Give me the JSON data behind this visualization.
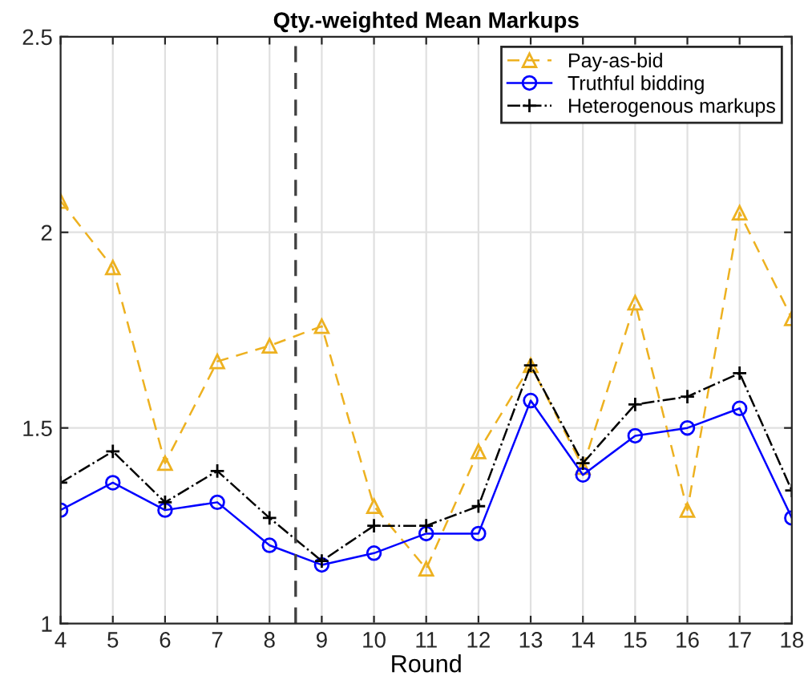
{
  "chart_data": {
    "type": "line",
    "title": "Qty.-weighted Mean Markups",
    "xlabel": "Round",
    "x": [
      4,
      5,
      6,
      7,
      8,
      9,
      10,
      11,
      12,
      13,
      14,
      15,
      16,
      17,
      18
    ],
    "series": [
      {
        "name": "Pay-as-bid",
        "color": "#edb120",
        "marker": "triangle",
        "line_style": "dashed",
        "values": [
          2.08,
          1.91,
          1.41,
          1.67,
          1.71,
          1.76,
          1.3,
          1.14,
          1.44,
          1.66,
          1.4,
          1.82,
          1.29,
          2.05,
          1.78
        ]
      },
      {
        "name": "Truthful bidding",
        "color": "#0000ff",
        "marker": "circle",
        "line_style": "solid",
        "values": [
          1.29,
          1.36,
          1.29,
          1.31,
          1.2,
          1.15,
          1.18,
          1.23,
          1.23,
          1.57,
          1.38,
          1.48,
          1.5,
          1.55,
          1.27
        ]
      },
      {
        "name": "Heterogenous markups",
        "color": "#000000",
        "marker": "cross",
        "line_style": "dashdot",
        "values": [
          1.36,
          1.44,
          1.31,
          1.39,
          1.27,
          1.16,
          1.25,
          1.25,
          1.3,
          1.66,
          1.41,
          1.56,
          1.58,
          1.64,
          1.34
        ]
      }
    ],
    "xlim": [
      4,
      18
    ],
    "xticks": [
      4,
      5,
      6,
      7,
      8,
      9,
      10,
      11,
      12,
      13,
      14,
      15,
      16,
      17,
      18
    ],
    "ylim": [
      1,
      2.5
    ],
    "yticks": [
      1,
      1.5,
      2,
      2.5
    ],
    "ref_lines": [
      {
        "axis": "x",
        "value": 8.5,
        "color": "#404040",
        "line_style": "dashed"
      }
    ],
    "grid": true,
    "legend": "top right"
  }
}
